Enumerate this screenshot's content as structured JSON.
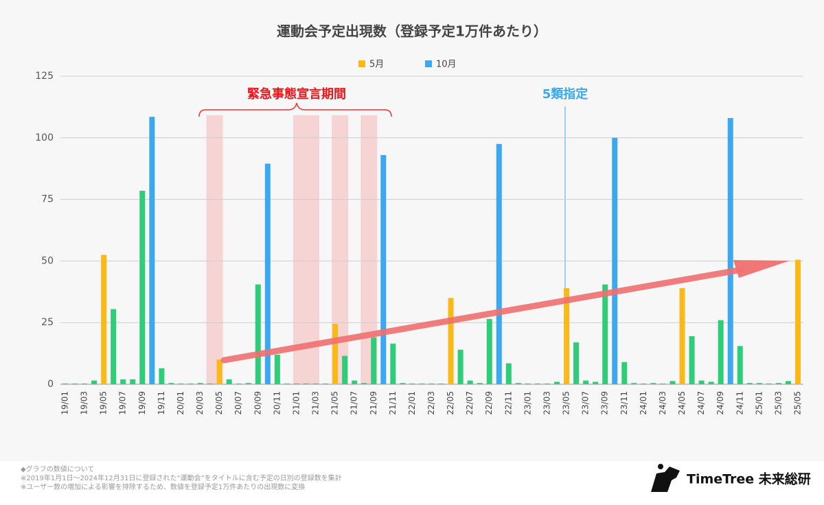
{
  "chart_data": {
    "type": "bar",
    "title": "運動会予定出現数（登録予定1万件あたり）",
    "legend": [
      {
        "name": "5月",
        "color": "#f9b918"
      },
      {
        "name": "10月",
        "color": "#3ba8f0"
      }
    ],
    "categories": [
      "19/01",
      null,
      "19/03",
      null,
      "19/05",
      null,
      "19/07",
      null,
      "19/09",
      null,
      "19/11",
      null,
      "20/01",
      null,
      "20/03",
      null,
      "20/05",
      null,
      "20/07",
      null,
      "20/09",
      null,
      "20/11",
      null,
      "21/01",
      null,
      "21/03",
      null,
      "21/05",
      null,
      "21/07",
      null,
      "21/09",
      null,
      "21/11",
      null,
      "22/01",
      null,
      "22/03",
      null,
      "22/05",
      null,
      "22/07",
      null,
      "22/09",
      null,
      "22/11",
      null,
      "23/01",
      null,
      "23/03",
      null,
      "23/05",
      null,
      "23/07",
      null,
      "23/09",
      null,
      "23/11",
      null,
      "24/01",
      null,
      "24/03",
      null,
      "24/05",
      null,
      "24/07",
      null,
      "24/09",
      null,
      "24/11",
      null,
      "25/01",
      null,
      "25/03",
      null,
      "25/05"
    ],
    "values": [
      0.3,
      0.3,
      0.3,
      1.5,
      52.5,
      30.5,
      2,
      2,
      78.5,
      108.5,
      6.5,
      0.5,
      0.3,
      0.3,
      0.5,
      0.3,
      10,
      2,
      0.3,
      0.5,
      40.5,
      89.5,
      12,
      0.3,
      0.3,
      0.3,
      0.3,
      0.3,
      24.5,
      11.5,
      1.5,
      0.5,
      19,
      93,
      16.5,
      0.5,
      0.3,
      0.3,
      0.3,
      0.3,
      35,
      14,
      1.5,
      0.5,
      26.5,
      97.5,
      8.5,
      0.5,
      0.3,
      0.3,
      0.3,
      1,
      39,
      17,
      1.5,
      1,
      40.5,
      100,
      9,
      0.5,
      0.3,
      0.5,
      0.3,
      1.3,
      39,
      19.5,
      1.5,
      1,
      26,
      108,
      15.5,
      0.5,
      0.5,
      0.3,
      0.5,
      1.3,
      50.5
    ],
    "colors": {
      "default": "#2fcc7a",
      "may": "#f9b918",
      "october": "#3ba8f0"
    },
    "ylim": [
      0,
      125
    ],
    "yticks": [
      0,
      25,
      50,
      75,
      100,
      125
    ],
    "grid": true,
    "annotations": {
      "emergency": "緊急事態宣言期間",
      "class5": "5類指定"
    },
    "footnotes": [
      "◆グラフの数値について",
      "※2019年1月1日～2024年12月31日に登録された“運動会”をタイトルに含む予定の日別の登録数を集計",
      "※ユーザー数の増加による影響を排除するため、数値を登録予定1万件あたりの出現数に変換"
    ],
    "brand": "TimeTree 未来総研"
  }
}
